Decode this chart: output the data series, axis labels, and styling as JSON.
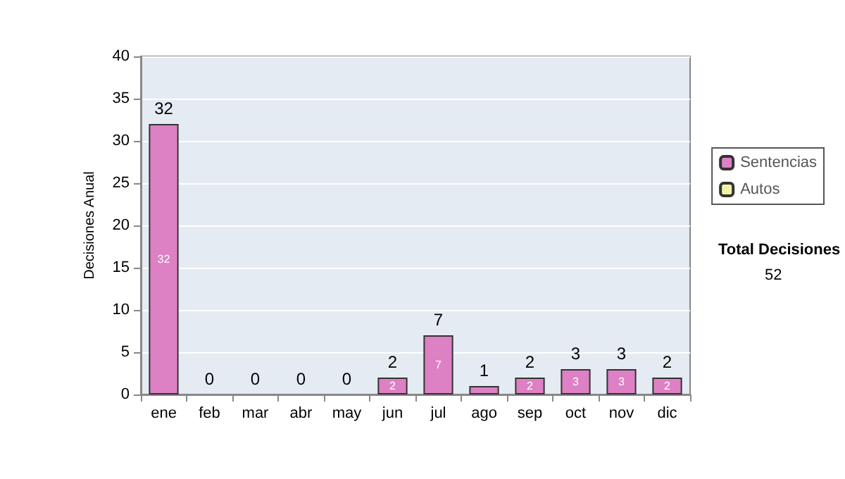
{
  "chart_data": {
    "type": "bar",
    "ylabel": "Decisiones Anual",
    "categories": [
      "ene",
      "feb",
      "mar",
      "abr",
      "may",
      "jun",
      "jul",
      "ago",
      "sep",
      "oct",
      "nov",
      "dic"
    ],
    "series": [
      {
        "name": "Sentencias",
        "color": "#dd80c4",
        "values": [
          32,
          0,
          0,
          0,
          0,
          2,
          7,
          1,
          2,
          3,
          3,
          2
        ],
        "value_labels": [
          "32",
          null,
          null,
          null,
          null,
          "2",
          "7",
          null,
          "2",
          "3",
          "3",
          "2"
        ]
      },
      {
        "name": "Autos",
        "color": "#f2f2a6",
        "values": [
          0,
          0,
          0,
          0,
          0,
          0,
          0,
          0,
          0,
          0,
          0,
          0
        ]
      }
    ],
    "stacked": true,
    "totals": [
      "32",
      "0",
      "0",
      "0",
      "0",
      "2",
      "7",
      "1",
      "2",
      "3",
      "3",
      "2"
    ],
    "ylim": [
      0,
      40
    ],
    "yticks": [
      0,
      5,
      10,
      15,
      20,
      25,
      30,
      35,
      40
    ],
    "grid": "y",
    "legend": "right",
    "annotations": [
      "Total Decisiones",
      "52"
    ]
  }
}
